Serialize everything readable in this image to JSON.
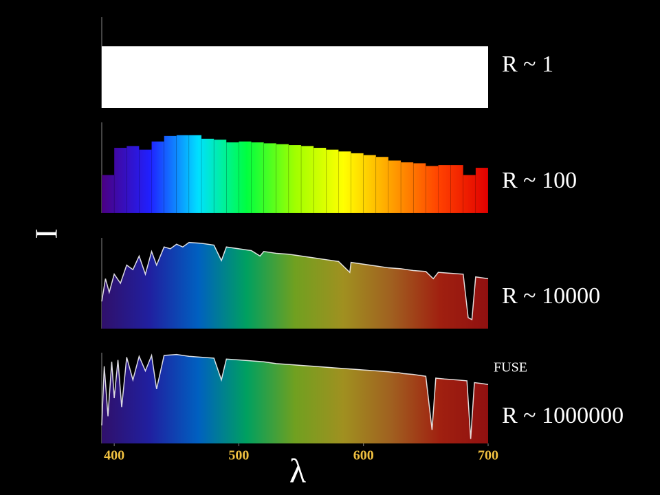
{
  "chart_data": [
    {
      "type": "area",
      "label": "R ~ 1",
      "ylabel": "I",
      "xlim": [
        390,
        700
      ],
      "ylim": [
        0,
        1
      ],
      "color": "#ffffff",
      "x": [
        390,
        700
      ],
      "values": [
        0.68,
        0.68
      ]
    },
    {
      "type": "histogram",
      "label": "R ~ 100",
      "xlim": [
        390,
        700
      ],
      "ylim": [
        0,
        1
      ],
      "colormap": [
        "#4b0082",
        "#2020ff",
        "#00e0ff",
        "#00ff40",
        "#a0ff00",
        "#ffff00",
        "#ffa000",
        "#ff4000",
        "#e00000"
      ],
      "bins": [
        390,
        400,
        410,
        420,
        430,
        440,
        450,
        460,
        470,
        480,
        490,
        500,
        510,
        520,
        530,
        540,
        550,
        560,
        570,
        580,
        590,
        600,
        610,
        620,
        630,
        640,
        650,
        660,
        670,
        680,
        690,
        700
      ],
      "values": [
        0.42,
        0.72,
        0.74,
        0.7,
        0.79,
        0.85,
        0.86,
        0.86,
        0.82,
        0.81,
        0.78,
        0.79,
        0.78,
        0.77,
        0.76,
        0.75,
        0.74,
        0.72,
        0.7,
        0.68,
        0.66,
        0.64,
        0.62,
        0.58,
        0.56,
        0.55,
        0.52,
        0.53,
        0.53,
        0.42,
        0.5
      ]
    },
    {
      "type": "area",
      "label": "R ~ 10000",
      "xlim": [
        390,
        700
      ],
      "ylim": [
        0,
        1
      ],
      "line_color": "#ffffff",
      "colormap": [
        "#30106a",
        "#2020a0",
        "#0060c0",
        "#00a060",
        "#70a020",
        "#a09020",
        "#a06020",
        "#a02010",
        "#901010"
      ],
      "x": [
        390,
        393,
        396,
        400,
        405,
        410,
        415,
        420,
        425,
        430,
        434,
        440,
        445,
        450,
        455,
        460,
        470,
        480,
        486,
        490,
        500,
        510,
        517,
        520,
        530,
        540,
        550,
        560,
        570,
        580,
        589,
        590,
        600,
        610,
        620,
        630,
        640,
        650,
        656,
        660,
        670,
        680,
        684,
        687,
        690,
        700
      ],
      "values": [
        0.3,
        0.55,
        0.4,
        0.6,
        0.5,
        0.7,
        0.65,
        0.8,
        0.6,
        0.85,
        0.7,
        0.9,
        0.88,
        0.93,
        0.9,
        0.95,
        0.94,
        0.92,
        0.75,
        0.9,
        0.88,
        0.86,
        0.8,
        0.85,
        0.83,
        0.82,
        0.8,
        0.78,
        0.76,
        0.74,
        0.62,
        0.73,
        0.71,
        0.69,
        0.67,
        0.66,
        0.64,
        0.63,
        0.55,
        0.62,
        0.61,
        0.6,
        0.12,
        0.1,
        0.57,
        0.55
      ]
    },
    {
      "type": "area",
      "label": "R ~ 1000000",
      "annotation": "FUSE",
      "xlabel": "λ",
      "xlim": [
        390,
        700
      ],
      "ylim": [
        0,
        1
      ],
      "line_color": "#ffffff",
      "xticks": [
        400,
        500,
        600,
        700
      ],
      "colormap": [
        "#30106a",
        "#2020a0",
        "#0060c0",
        "#00a060",
        "#70a020",
        "#a09020",
        "#a06020",
        "#a02010",
        "#901010"
      ],
      "x": [
        390,
        392,
        395,
        398,
        400,
        403,
        406,
        410,
        415,
        420,
        425,
        430,
        434,
        440,
        450,
        460,
        470,
        480,
        486,
        490,
        500,
        510,
        520,
        530,
        540,
        550,
        560,
        570,
        580,
        590,
        600,
        610,
        620,
        626,
        628,
        632,
        640,
        645,
        650,
        655,
        658,
        665,
        675,
        683,
        686,
        689,
        695,
        700
      ],
      "values": [
        0.2,
        0.85,
        0.3,
        0.9,
        0.5,
        0.92,
        0.4,
        0.95,
        0.7,
        0.96,
        0.8,
        0.97,
        0.6,
        0.97,
        0.98,
        0.96,
        0.95,
        0.94,
        0.7,
        0.93,
        0.92,
        0.91,
        0.9,
        0.88,
        0.87,
        0.86,
        0.85,
        0.84,
        0.83,
        0.82,
        0.81,
        0.8,
        0.79,
        0.78,
        0.78,
        0.77,
        0.76,
        0.75,
        0.74,
        0.15,
        0.72,
        0.71,
        0.7,
        0.69,
        0.05,
        0.67,
        0.66,
        0.65
      ]
    }
  ]
}
